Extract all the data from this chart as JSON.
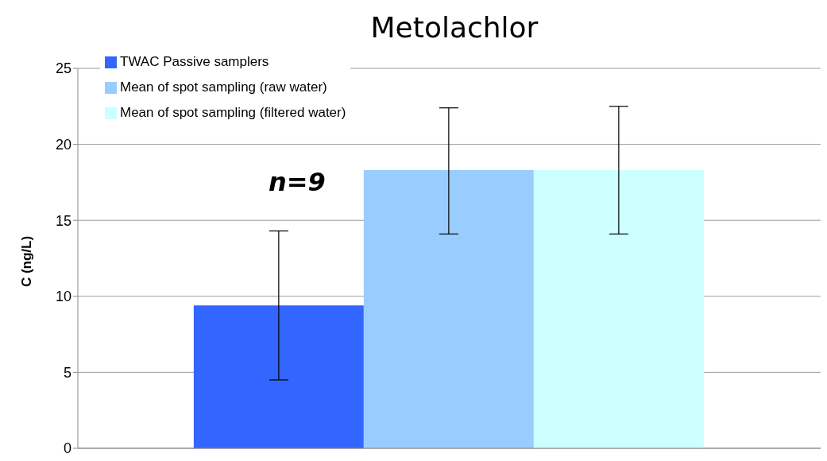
{
  "chart_data": {
    "type": "bar",
    "title": "Metolachlor",
    "ylabel": "C (ng/L)",
    "categories": [
      null
    ],
    "series": [
      {
        "name": "TWAC Passive samplers",
        "color": "#3366ff",
        "values": [
          9.4
        ],
        "errors": [
          [
            4.5,
            14.3
          ]
        ]
      },
      {
        "name": "Mean of spot sampling (raw water)",
        "color": "#99ccff",
        "values": [
          18.3
        ],
        "errors": [
          [
            14.1,
            22.4
          ]
        ]
      },
      {
        "name": "Mean of spot sampling (filtered water)",
        "color": "#ccffff",
        "values": [
          18.3
        ],
        "errors": [
          [
            14.1,
            22.5
          ]
        ]
      }
    ],
    "ylim": [
      0,
      25
    ],
    "yticks": [
      0,
      5,
      10,
      15,
      20,
      25
    ],
    "grid": "y",
    "legend": "top left",
    "tick_labels": "y",
    "annotations": [
      "n=9"
    ]
  }
}
